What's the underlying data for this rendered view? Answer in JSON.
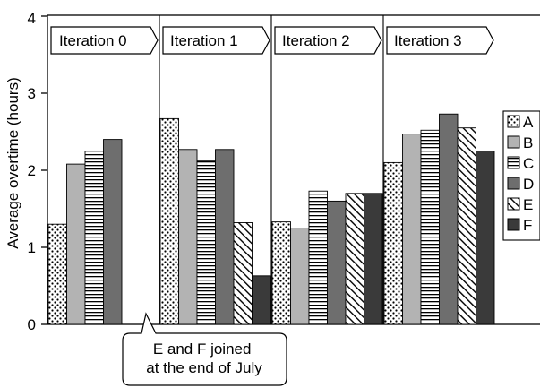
{
  "chart_data": {
    "type": "bar",
    "title": "",
    "xlabel": "",
    "ylabel": "Average overtime (hours)",
    "ylim": [
      0,
      4
    ],
    "yticks": [
      0,
      1,
      2,
      3,
      4
    ],
    "grid": false,
    "legend_position": "right",
    "groups": [
      "Iteration 0",
      "Iteration 1",
      "Iteration 2",
      "Iteration 3"
    ],
    "series": [
      {
        "name": "A",
        "pattern": "dots",
        "color": "#ffffff",
        "values": [
          1.3,
          2.67,
          1.33,
          2.1
        ]
      },
      {
        "name": "B",
        "pattern": "solid",
        "color": "#b3b3b3",
        "values": [
          2.08,
          2.27,
          1.25,
          2.47
        ]
      },
      {
        "name": "C",
        "pattern": "horizontal",
        "color": "#ffffff",
        "values": [
          2.25,
          2.12,
          1.73,
          2.52
        ]
      },
      {
        "name": "D",
        "pattern": "solid",
        "color": "#6e6e6e",
        "values": [
          2.4,
          2.27,
          1.6,
          2.73
        ]
      },
      {
        "name": "E",
        "pattern": "diagonal",
        "color": "#ffffff",
        "values": [
          null,
          1.32,
          1.7,
          2.55
        ]
      },
      {
        "name": "F",
        "pattern": "solid",
        "color": "#3a3a3a",
        "values": [
          null,
          0.63,
          1.7,
          2.25
        ]
      }
    ],
    "annotation": "E and F joined\nat the end of July"
  }
}
